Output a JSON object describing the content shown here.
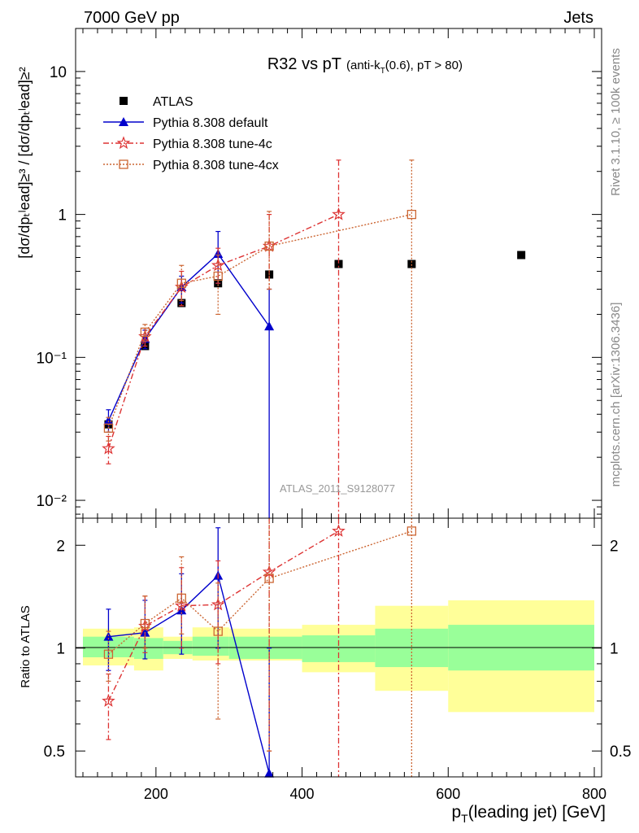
{
  "header": {
    "left": "7000 GeV pp",
    "right": "Jets"
  },
  "side_text": {
    "rivet": "Rivet 3.1.10, ≥ 100k events",
    "mcplots": "mcplots.cern.ch [arXiv:1306.3436]"
  },
  "title": {
    "main": "R32 vs pT",
    "cut_prefix": "(anti-k",
    "cut_sub": "T",
    "cut_suffix": "(0.6), pT > 80)"
  },
  "watermark": "ATLAS_2011_S9128077",
  "axes": {
    "ylabel_main": "[dσ/dpₜˡead]≥³ / [dσ/dpₜˡead]≥²",
    "ylabel_ratio": "Ratio to ATLAS",
    "xlabel_pre": "p",
    "xlabel_sub": "T",
    "xlabel_post": "(leading jet) [GeV]"
  },
  "legend": [
    {
      "name": "ATLAS",
      "color": "#000000",
      "marker": "square"
    },
    {
      "name": "Pythia 8.308 default",
      "color": "#0000cc",
      "marker": "triangle"
    },
    {
      "name": "Pythia 8.308 tune-4c",
      "color": "#dd3333",
      "marker": "star"
    },
    {
      "name": "Pythia 8.308 tune-4cx",
      "color": "#cc6633",
      "marker": "open-square"
    }
  ],
  "colors": {
    "band_inner": "#99ff99",
    "band_outer": "#ffff99"
  },
  "chart_data": [
    {
      "type": "scatter",
      "panel": "main",
      "y_scale": "log",
      "xlim": [
        90,
        810
      ],
      "ylim": [
        0.0075,
        20
      ],
      "y_ticks": [
        "10⁻²",
        "10⁻¹",
        "1",
        "10"
      ],
      "series": [
        {
          "name": "ATLAS",
          "x": [
            135,
            185,
            235,
            285,
            355,
            450,
            550,
            700
          ],
          "y": [
            0.034,
            0.12,
            0.24,
            0.33,
            0.38,
            0.45,
            0.45,
            0.52
          ]
        },
        {
          "name": "Pythia 8.308 default",
          "x": [
            135,
            185,
            235,
            285,
            355
          ],
          "y": [
            0.036,
            0.135,
            0.31,
            0.53,
            0.165
          ],
          "err": [
            [
              0.03,
              0.043
            ],
            [
              0.115,
              0.155
            ],
            [
              0.24,
              0.37
            ],
            [
              0.33,
              0.76
            ],
            [
              0.003,
              0.3
            ]
          ]
        },
        {
          "name": "Pythia 8.308 tune-4c",
          "x": [
            135,
            185,
            235,
            285,
            355,
            450
          ],
          "y": [
            0.023,
            0.14,
            0.31,
            0.44,
            0.6,
            1.0
          ],
          "err": [
            [
              0.018,
              0.028
            ],
            [
              0.12,
              0.16
            ],
            [
              0.23,
              0.4
            ],
            [
              0.33,
              0.58
            ],
            [
              0.3,
              1.0
            ],
            [
              0.003,
              2.4
            ]
          ]
        },
        {
          "name": "Pythia 8.308 tune-4cx",
          "x": [
            135,
            185,
            235,
            285,
            355,
            550
          ],
          "y": [
            0.032,
            0.15,
            0.33,
            0.37,
            0.6,
            1.0
          ],
          "err": [
            [
              0.026,
              0.038
            ],
            [
              0.13,
              0.17
            ],
            [
              0.25,
              0.44
            ],
            [
              0.2,
              0.52
            ],
            [
              0.3,
              1.05
            ],
            [
              0.003,
              2.4
            ]
          ]
        }
      ]
    },
    {
      "type": "scatter",
      "panel": "ratio",
      "y_scale": "log",
      "xlim": [
        90,
        810
      ],
      "ylim": [
        0.42,
        2.4
      ],
      "x_ticks": [
        200,
        400,
        600,
        800
      ],
      "y_ticks": [
        0.5,
        1,
        2
      ],
      "bands": {
        "edges": [
          100,
          170,
          210,
          250,
          300,
          400,
          500,
          600,
          800
        ],
        "inner": [
          [
            0.94,
            1.08
          ],
          [
            0.93,
            1.07
          ],
          [
            0.96,
            1.05
          ],
          [
            0.95,
            1.08
          ],
          [
            0.93,
            1.08
          ],
          [
            0.91,
            1.09
          ],
          [
            0.88,
            1.14
          ],
          [
            0.86,
            1.17
          ]
        ],
        "outer": [
          [
            0.89,
            1.14
          ],
          [
            0.86,
            1.15
          ],
          [
            0.93,
            1.08
          ],
          [
            0.92,
            1.15
          ],
          [
            0.92,
            1.14
          ],
          [
            0.85,
            1.17
          ],
          [
            0.75,
            1.33
          ],
          [
            0.65,
            1.38
          ]
        ]
      },
      "series": [
        {
          "name": "Pythia 8.308 default",
          "x": [
            135,
            185,
            235,
            285,
            355
          ],
          "y": [
            1.08,
            1.11,
            1.29,
            1.63,
            0.43
          ],
          "err": [
            [
              0.86,
              1.3
            ],
            [
              0.93,
              1.38
            ],
            [
              0.96,
              1.65
            ],
            [
              1.0,
              2.25
            ],
            [
              0.43,
              1.0
            ]
          ]
        },
        {
          "name": "Pythia 8.308 tune-4c",
          "x": [
            135,
            185,
            235,
            285,
            355,
            450
          ],
          "y": [
            0.7,
            1.16,
            1.33,
            1.34,
            1.67,
            2.2
          ],
          "err": [
            [
              0.54,
              0.84
            ],
            [
              0.97,
              1.42
            ],
            [
              1.0,
              1.72
            ],
            [
              0.9,
              1.8
            ],
            [
              0.5,
              2.4
            ],
            [
              0.42,
              2.4
            ]
          ]
        },
        {
          "name": "Pythia 8.308 tune-4cx",
          "x": [
            135,
            185,
            235,
            285,
            355,
            550
          ],
          "y": [
            0.96,
            1.18,
            1.4,
            1.12,
            1.6,
            2.2
          ],
          "err": [
            [
              0.8,
              1.12
            ],
            [
              1.0,
              1.42
            ],
            [
              1.1,
              1.85
            ],
            [
              0.62,
              1.55
            ],
            [
              0.5,
              2.4
            ],
            [
              0.42,
              2.4
            ]
          ]
        }
      ]
    }
  ]
}
